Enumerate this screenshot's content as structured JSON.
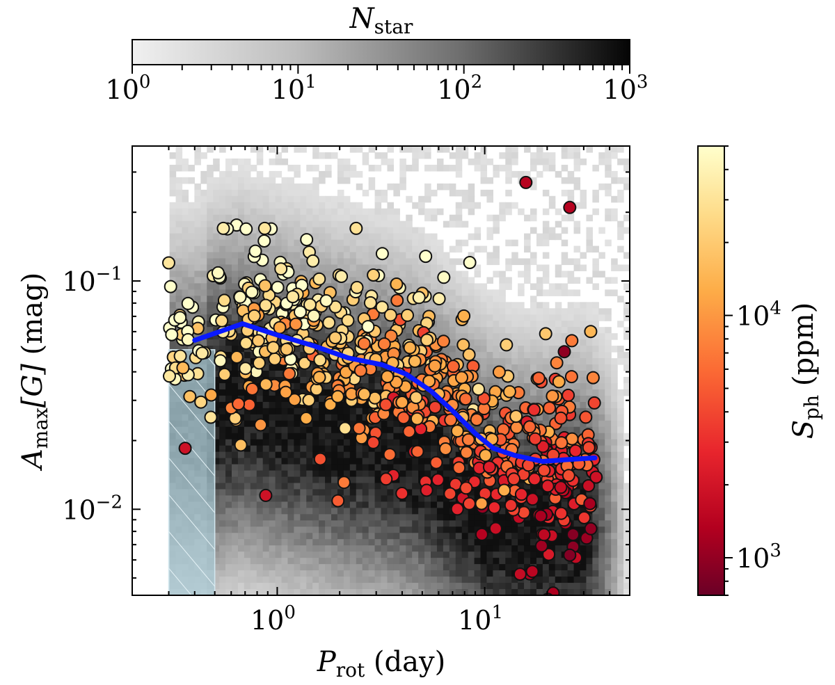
{
  "chart_data": {
    "type": "scatter",
    "title": "",
    "xscale": "log",
    "yscale": "log",
    "xlim": [
      0.2,
      50
    ],
    "ylim": [
      0.0042,
      0.39
    ],
    "xlabel": {
      "main": "P",
      "sub": "rot",
      "unit": " (day)"
    },
    "ylabel": {
      "main": "A",
      "sub": "max",
      "bracket": "[G]",
      "unit": " (mag)"
    },
    "xticks": [
      {
        "base": "10",
        "exp": "0",
        "value": 1
      },
      {
        "base": "10",
        "exp": "1",
        "value": 10
      }
    ],
    "yticks": [
      {
        "base": "10",
        "exp": "−2",
        "value": 0.01
      },
      {
        "base": "10",
        "exp": "−1",
        "value": 0.1
      }
    ],
    "background_histogram": {
      "colorbar_label": {
        "main": "N",
        "sub": "star"
      },
      "range": [
        1,
        1000
      ],
      "scale": "log",
      "ticks": [
        {
          "base": "10",
          "exp": "0",
          "value": 1
        },
        {
          "base": "10",
          "exp": "1",
          "value": 10
        },
        {
          "base": "10",
          "exp": "2",
          "value": 100
        },
        {
          "base": "10",
          "exp": "3",
          "value": 1000
        }
      ]
    },
    "color_scale": {
      "label": {
        "main": "S",
        "sub": "ph",
        "unit": " (ppm)"
      },
      "range": [
        700,
        50000
      ],
      "scale": "log",
      "ticks": [
        {
          "base": "10",
          "exp": "3",
          "value": 1000
        },
        {
          "base": "10",
          "exp": "4",
          "value": 10000
        }
      ],
      "colors": [
        "#6a0026",
        "#b3001f",
        "#e8252d",
        "#fb6a34",
        "#fdad48",
        "#fedc8a",
        "#ffffcc"
      ]
    },
    "shaded_region": {
      "x": [
        0.3,
        0.5
      ],
      "y_max": 0.05,
      "color": "#a9cad6"
    },
    "trend_line": {
      "color": "#0a1aff",
      "x": [
        0.4,
        0.68,
        1.0,
        1.5,
        2.2,
        3.2,
        4.2,
        5.5,
        7.0,
        9.0,
        11.0,
        14.0,
        19.0,
        25.0,
        34.0
      ],
      "y": [
        0.055,
        0.065,
        0.058,
        0.052,
        0.046,
        0.043,
        0.039,
        0.033,
        0.027,
        0.0215,
        0.0185,
        0.0172,
        0.0162,
        0.0165,
        0.0168
      ]
    },
    "highlighted_points": [
      {
        "x": 15.8,
        "y": 0.27,
        "s": 1500
      },
      {
        "x": 25.7,
        "y": 0.21,
        "s": 1500
      },
      {
        "x": 24.2,
        "y": 0.049,
        "s": 1000
      },
      {
        "x": 25.7,
        "y": 0.0063,
        "s": 900
      },
      {
        "x": 0.3,
        "y": 0.12,
        "s": 30000
      },
      {
        "x": 0.55,
        "y": 0.17,
        "s": 35000
      },
      {
        "x": 0.87,
        "y": 0.17,
        "s": 30000
      },
      {
        "x": 2.4,
        "y": 0.17,
        "s": 28000
      },
      {
        "x": 0.36,
        "y": 0.0185,
        "s": 2000
      },
      {
        "x": 14.8,
        "y": 0.0052,
        "s": 1800
      },
      {
        "x": 0.88,
        "y": 0.0115,
        "s": 2000
      }
    ],
    "scatter_summary": {
      "n_points": 650
    }
  }
}
